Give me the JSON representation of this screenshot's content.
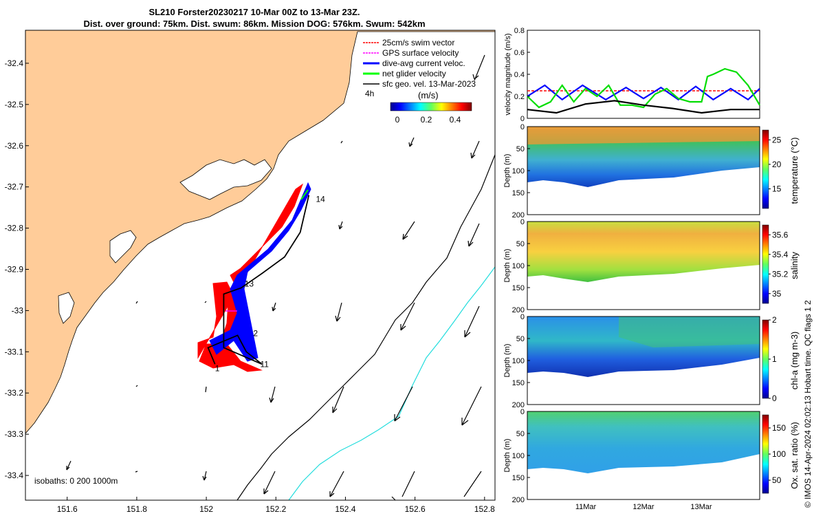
{
  "header": {
    "line1": "SL210 Forster20230217 10-Mar 00Z to 13-Mar 23Z.",
    "line2": "Dist. over ground: 75km. Dist. swum: 86km. Mission DOG: 576km. Swum: 542km"
  },
  "credit": "© IMOS 14-Apr-2024 02:02:13 Hobart time. QC flags 1  2",
  "chart_data": [
    {
      "type": "scatter",
      "id": "map",
      "x_ticks": [
        151.6,
        151.8,
        152,
        152.2,
        152.4,
        152.6,
        152.8
      ],
      "y_ticks": [
        -32.4,
        -32.5,
        -32.6,
        -32.7,
        -32.8,
        -32.9,
        -33,
        -33.1,
        -33.2,
        -33.3,
        -33.4
      ],
      "xlim": [
        151.48,
        152.83
      ],
      "ylim": [
        -33.46,
        -32.32
      ],
      "legend": [
        {
          "label": "25cm/s swim vector",
          "color": "#ff0000"
        },
        {
          "label": "GPS surface velocity",
          "color": "#ff00ff"
        },
        {
          "label": "dive-avg current veloc.",
          "color": "#0000ff"
        },
        {
          "label": "net glider velocity",
          "color": "#00ff00"
        },
        {
          "label": "sfc geo. vel. 13-Mar-2023",
          "color": "#000000"
        }
      ],
      "legend_extra": "4h",
      "colorbar": {
        "label": "(m/s)",
        "ticks": [
          "0",
          "0.2",
          "0.4"
        ]
      },
      "isobaths_label": "isobaths: 0   200  1000m",
      "point_labels": [
        {
          "label": "14",
          "lon": 152.315,
          "lat": -32.73
        },
        {
          "label": "13",
          "lon": 152.11,
          "lat": -32.935
        },
        {
          "label": "2",
          "lon": 152.135,
          "lat": -33.055
        },
        {
          "label": "11",
          "lon": 152.155,
          "lat": -33.13
        },
        {
          "label": "1",
          "lon": 152.025,
          "lat": -33.14
        }
      ],
      "track": [
        {
          "lon": 152.025,
          "lat": -33.13
        },
        {
          "lon": 152.005,
          "lat": -33.09
        },
        {
          "lon": 152.09,
          "lat": -33.06
        },
        {
          "lon": 152.115,
          "lat": -33.1
        },
        {
          "lon": 152.16,
          "lat": -33.13
        },
        {
          "lon": 152.05,
          "lat": -33.09
        },
        {
          "lon": 152.05,
          "lat": -32.96
        },
        {
          "lon": 152.1,
          "lat": -32.945
        },
        {
          "lon": 152.16,
          "lat": -32.91
        },
        {
          "lon": 152.225,
          "lat": -32.87
        },
        {
          "lon": 152.27,
          "lat": -32.81
        },
        {
          "lon": 152.295,
          "lat": -32.72
        }
      ]
    },
    {
      "type": "line",
      "id": "velocity",
      "ylabel": "velocity magnitude (m/s)",
      "ylim": [
        0,
        0.8
      ],
      "y_ticks": [
        0,
        0.2,
        0.4,
        0.6,
        0.8
      ],
      "xlim": [
        0,
        4
      ],
      "series": [
        {
          "color": "#ff0000",
          "x": [
            0,
            4
          ],
          "y": [
            0.25,
            0.25
          ]
        },
        {
          "color": "#0000ff",
          "x": [
            0,
            0.3,
            0.6,
            0.95,
            1.35,
            1.7,
            2.0,
            2.3,
            2.6,
            2.9,
            3.2,
            3.5,
            3.8,
            4.0
          ],
          "y": [
            0.2,
            0.3,
            0.17,
            0.3,
            0.17,
            0.28,
            0.18,
            0.28,
            0.17,
            0.29,
            0.17,
            0.27,
            0.17,
            0.27
          ]
        },
        {
          "color": "#00dd00",
          "x": [
            0,
            0.2,
            0.4,
            0.6,
            0.8,
            1.0,
            1.2,
            1.4,
            1.6,
            1.8,
            2.0,
            2.2,
            2.4,
            2.6,
            2.8,
            3.0,
            3.1,
            3.2,
            3.4,
            3.6,
            3.8,
            4.0
          ],
          "y": [
            0.2,
            0.1,
            0.15,
            0.3,
            0.15,
            0.27,
            0.2,
            0.3,
            0.12,
            0.12,
            0.1,
            0.22,
            0.27,
            0.18,
            0.15,
            0.15,
            0.38,
            0.4,
            0.45,
            0.42,
            0.3,
            0.12
          ]
        },
        {
          "color": "#000000",
          "x": [
            0,
            0.5,
            1.0,
            1.5,
            2.0,
            2.5,
            3.0,
            3.5,
            4.0
          ],
          "y": [
            0.08,
            0.05,
            0.13,
            0.16,
            0.12,
            0.09,
            0.05,
            0.08,
            0.08
          ]
        }
      ]
    },
    {
      "type": "heatmap",
      "id": "temperature",
      "ylabel": "Depth (m)",
      "ylim": [
        0,
        200
      ],
      "y_ticks": [
        0,
        50,
        100,
        150,
        200
      ],
      "colorbar": {
        "label": "temperature (°C)",
        "ticks": [
          "25",
          "20",
          "15"
        ],
        "range": [
          11,
          27
        ]
      }
    },
    {
      "type": "heatmap",
      "id": "salinity",
      "ylabel": "Depth (m)",
      "ylim": [
        0,
        200
      ],
      "y_ticks": [
        0,
        50,
        100,
        150,
        200
      ],
      "colorbar": {
        "label": "salinity",
        "ticks": [
          "35.6",
          "35.4",
          "35.2",
          "35"
        ],
        "range": [
          34.9,
          35.7
        ]
      }
    },
    {
      "type": "heatmap",
      "id": "chla",
      "ylabel": "Depth (m)",
      "ylim": [
        0,
        200
      ],
      "y_ticks": [
        0,
        50,
        100,
        150,
        200
      ],
      "colorbar": {
        "label": "chl-a (mg m-3)",
        "ticks": [
          "2",
          "1",
          "0"
        ],
        "range": [
          0,
          2
        ]
      }
    },
    {
      "type": "heatmap",
      "id": "oxygen",
      "ylabel": "Depth (m)",
      "ylim": [
        0,
        200
      ],
      "y_ticks": [
        0,
        50,
        100,
        150,
        200
      ],
      "x_ticks": [
        "11Mar",
        "12Mar",
        "13Mar"
      ],
      "colorbar": {
        "label": "Ox. sat. ratio (%)",
        "ticks": [
          "150",
          "100",
          "50"
        ],
        "range": [
          25,
          175
        ]
      }
    }
  ]
}
